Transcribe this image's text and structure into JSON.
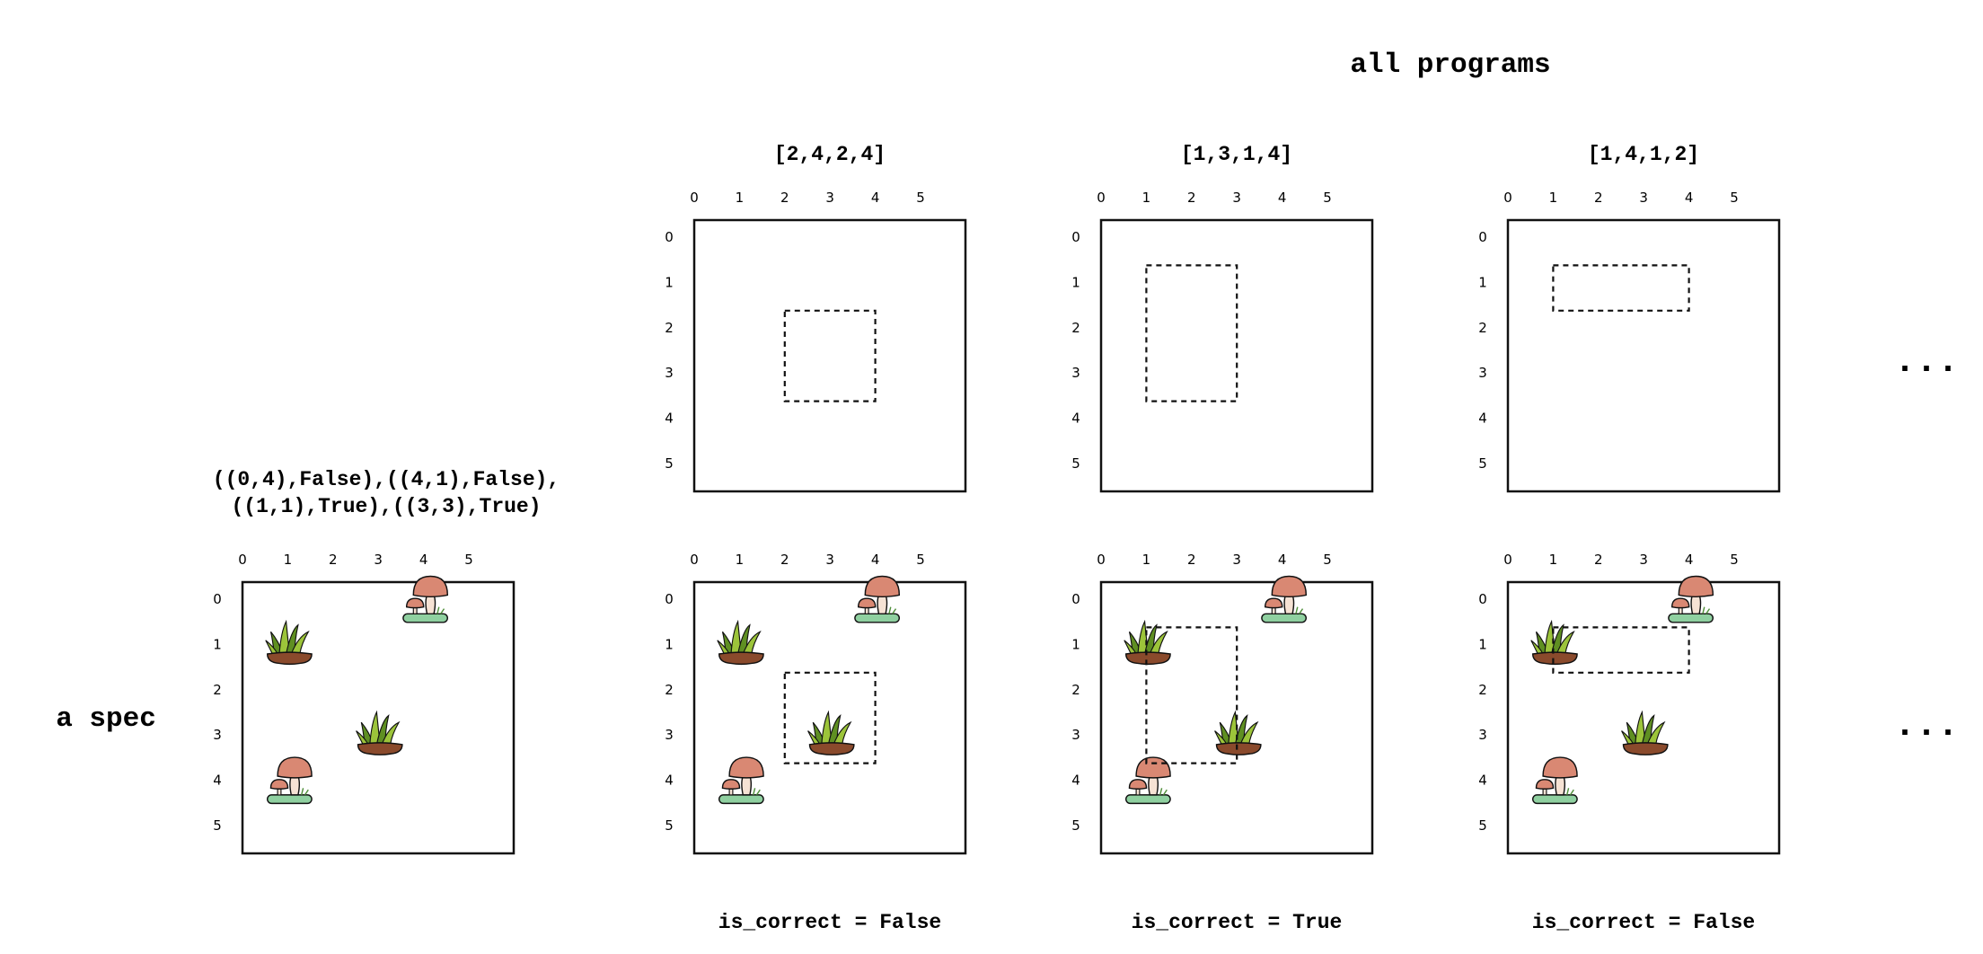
{
  "header_title": "all programs",
  "spec_label": "a spec",
  "spec_text_line1": "((0,4),False),((4,1),False),",
  "spec_text_line2": "((1,1),True),((3,3),True)",
  "ellipsis_top": "...",
  "ellipsis_bottom": "...",
  "axis_ticks": [
    "0",
    "1",
    "2",
    "3",
    "4",
    "5"
  ],
  "spec_items": [
    {
      "kind": "mushroom",
      "x": 4,
      "y": 0
    },
    {
      "kind": "grass",
      "x": 1,
      "y": 1
    },
    {
      "kind": "grass",
      "x": 3,
      "y": 3
    },
    {
      "kind": "mushroom",
      "x": 1,
      "y": 4
    }
  ],
  "programs": [
    {
      "label": "[2,4,2,4]",
      "rect": [
        2,
        4,
        2,
        4
      ],
      "verdict": "is_correct = False"
    },
    {
      "label": "[1,3,1,4]",
      "rect": [
        1,
        3,
        1,
        4
      ],
      "verdict": "is_correct = True"
    },
    {
      "label": "[1,4,1,2]",
      "rect": [
        1,
        4,
        1,
        2
      ],
      "verdict": "is_correct = False"
    }
  ],
  "colors": {
    "mushroom_cap": "#d98873",
    "mushroom_stem": "#f6e2d4",
    "grass_light": "#9cc43a",
    "grass_dark": "#5f8f22",
    "soil": "#8a4a2c",
    "base_green": "#8fd0a0",
    "line": "#111111"
  }
}
